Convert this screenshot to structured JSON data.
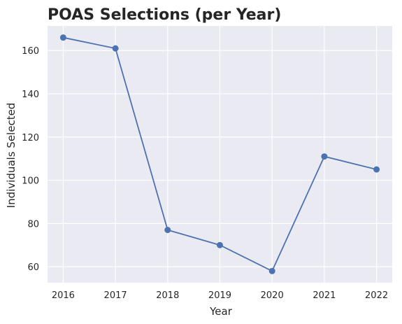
{
  "chart_data": {
    "type": "line",
    "title": "POAS Selections (per Year)",
    "xlabel": "Year",
    "ylabel": "Individuals Selected",
    "x": [
      2016,
      2017,
      2018,
      2019,
      2020,
      2021,
      2022
    ],
    "series": [
      {
        "values": [
          166,
          161,
          77,
          70,
          58,
          111,
          105
        ]
      }
    ],
    "xticks": [
      "2016",
      "2017",
      "2018",
      "2019",
      "2020",
      "2021",
      "2022"
    ],
    "yticks": [
      60,
      80,
      100,
      120,
      140,
      160
    ],
    "xlim": [
      2015.7,
      2022.3
    ],
    "ylim": [
      52.6,
      171.4
    ],
    "grid": true,
    "colors": {
      "background": "#eaeaf2",
      "grid": "#ffffff",
      "line": "#4c72b0"
    }
  }
}
